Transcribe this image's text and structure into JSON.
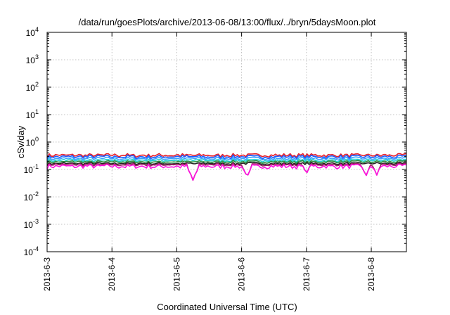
{
  "chart_data": {
    "type": "line",
    "title": "/data/run/goesPlots/archive/2013-06-08/13:00/flux/../bryn/5daysMoon.plot",
    "xlabel": "Coordinated Universal Time (UTC)",
    "ylabel": "cSv/day",
    "yscale": "log",
    "ylim": [
      0.0001,
      10000
    ],
    "xlim": [
      "2013-06-03",
      "2013-06-08 13:00"
    ],
    "grid": true,
    "legend": "none",
    "x_ticks": [
      "2013-6-3",
      "2013-6-4",
      "2013-6-5",
      "2013-6-6",
      "2013-6-7",
      "2013-6-8"
    ],
    "y_ticks": [
      {
        "base": "10",
        "exp": "-4",
        "value": 0.0001
      },
      {
        "base": "10",
        "exp": "-3",
        "value": 0.001
      },
      {
        "base": "10",
        "exp": "-2",
        "value": 0.01
      },
      {
        "base": "10",
        "exp": "-1",
        "value": 0.1
      },
      {
        "base": "10",
        "exp": "0",
        "value": 1
      },
      {
        "base": "10",
        "exp": "1",
        "value": 10
      },
      {
        "base": "10",
        "exp": "2",
        "value": 100
      },
      {
        "base": "10",
        "exp": "3",
        "value": 1000
      },
      {
        "base": "10",
        "exp": "4",
        "value": 10000
      }
    ],
    "series": [
      {
        "color": "#e8202a",
        "level": 0.33,
        "noise": 0.14
      },
      {
        "color": "#1a5cff",
        "level": 0.29,
        "noise": 0.14
      },
      {
        "color": "#3aa0ff",
        "level": 0.25,
        "noise": 0.12
      },
      {
        "color": "#20d0d0",
        "level": 0.215,
        "noise": 0.11
      },
      {
        "color": "#2a8a3a",
        "level": 0.19,
        "noise": 0.1
      },
      {
        "color": "#222222",
        "level": 0.165,
        "noise": 0.09
      },
      {
        "color": "#9a2060",
        "level": 0.15,
        "noise": 0.1
      },
      {
        "color": "#ff10e0",
        "level": 0.13,
        "noise": 0.18
      }
    ],
    "dips": [
      {
        "date": "2013-06-05 06:00",
        "value": 0.04
      },
      {
        "date": "2013-06-06 02:00",
        "value": 0.05
      },
      {
        "date": "2013-06-07 00:00",
        "value": 0.065
      },
      {
        "date": "2013-06-07 22:00",
        "value": 0.055
      },
      {
        "date": "2013-06-08 02:00",
        "value": 0.06
      }
    ]
  }
}
